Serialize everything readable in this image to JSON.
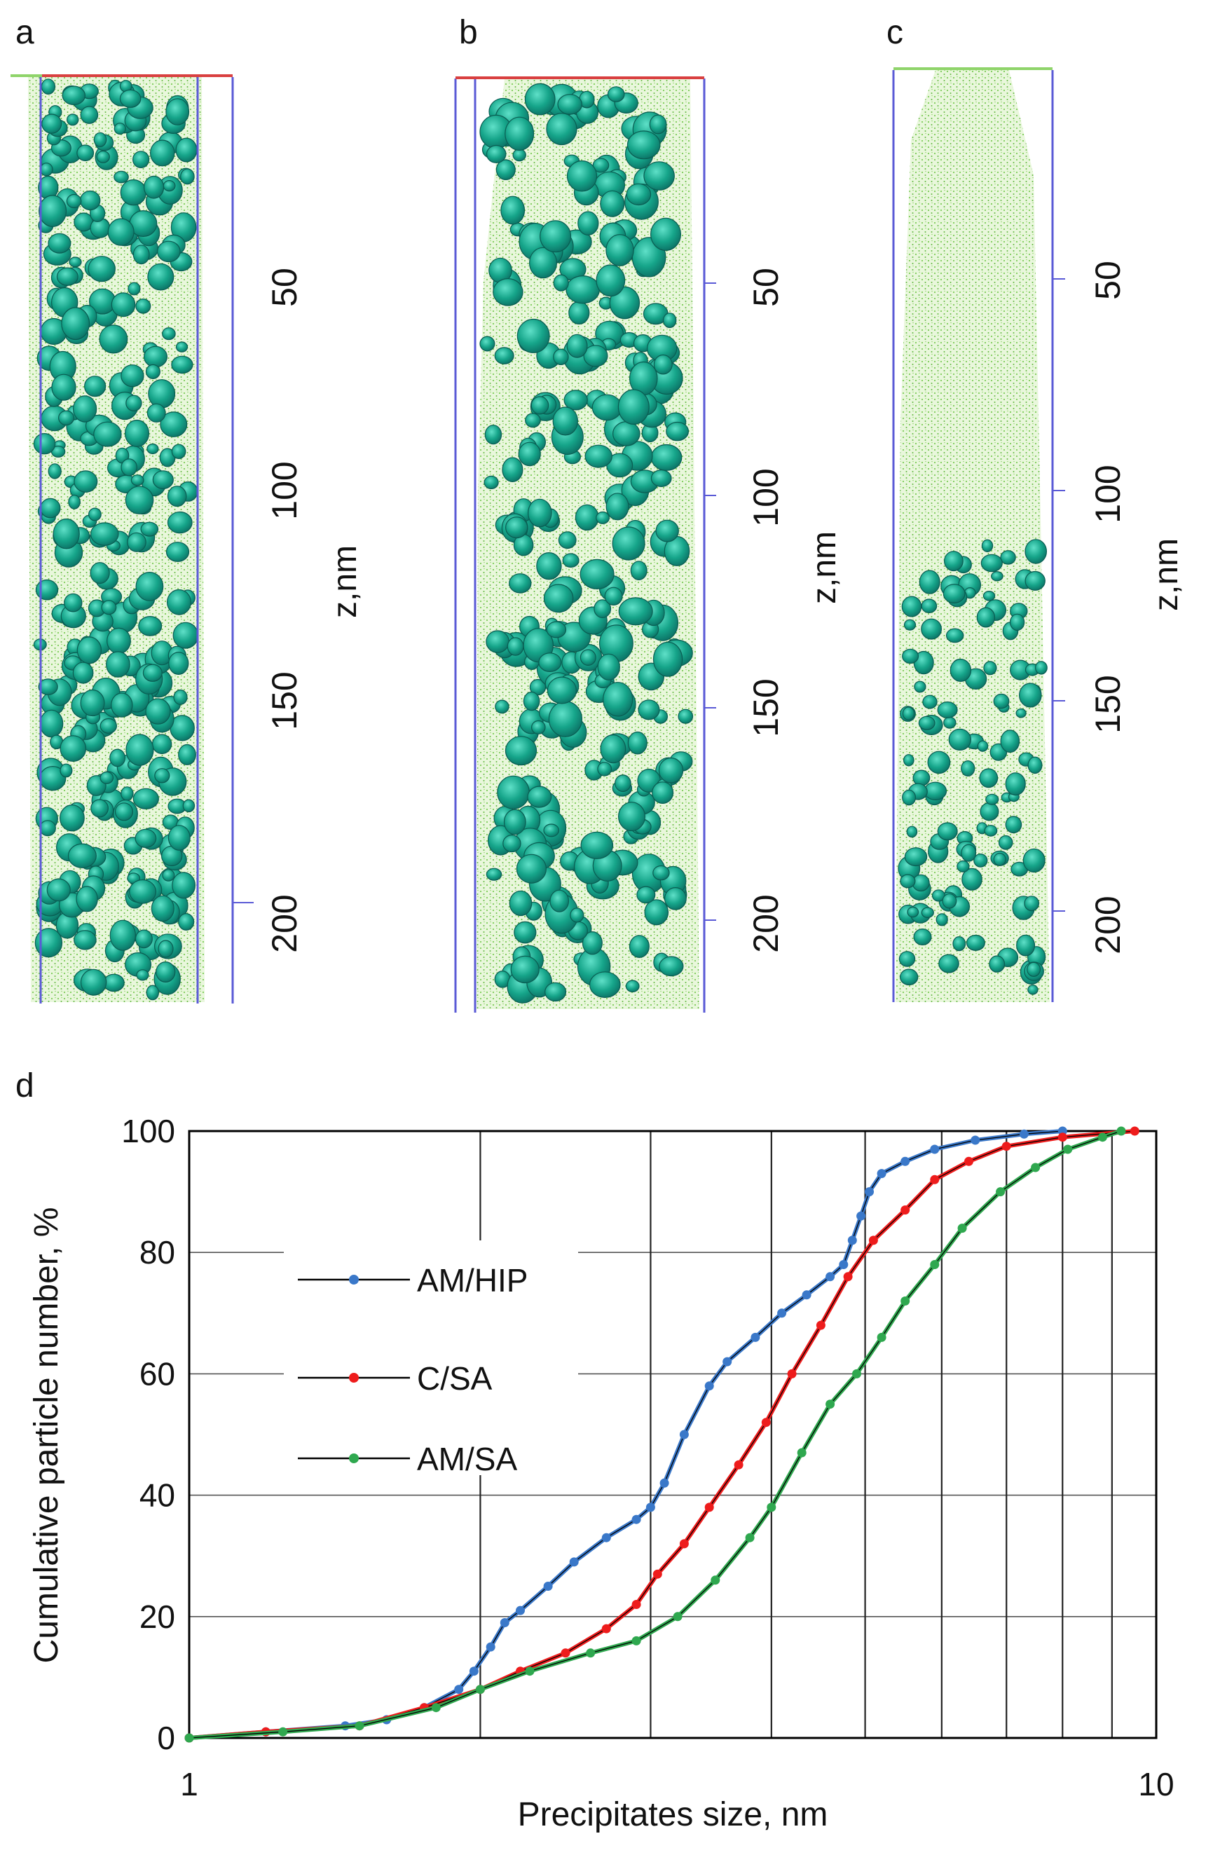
{
  "panels": [
    {
      "label": "a",
      "z_ticks": [
        "50",
        "100",
        "150",
        "200"
      ],
      "z_label": "z,nm"
    },
    {
      "label": "b",
      "z_ticks": [
        "50",
        "100",
        "150",
        "200"
      ],
      "z_label": "z,nm"
    },
    {
      "label": "c",
      "z_ticks": [
        "50",
        "100",
        "150",
        "200"
      ],
      "z_label": "z,nm"
    }
  ],
  "colors": {
    "am_hip": "#3a78c9",
    "c_sa": "#ee1c1c",
    "am_sa": "#2fa84f",
    "precipitate": "#1aa88c",
    "matrix": "#8fd46a",
    "frame": "#5a5ad6"
  },
  "chart_data": {
    "panel_label": "d",
    "type": "line",
    "xscale": "log",
    "xlim": [
      1,
      10
    ],
    "ylim": [
      0,
      100
    ],
    "xlabel": "Precipitates size, nm",
    "ylabel": "Cumulative particle number, %",
    "x_tick_labels": [
      "1",
      "10"
    ],
    "y_ticks": [
      0,
      20,
      40,
      60,
      80,
      100
    ],
    "x_gridlines": [
      2,
      3,
      4,
      5,
      6,
      7,
      8,
      9,
      10
    ],
    "legend_placement": "left",
    "series": [
      {
        "name": "AM/HIP",
        "color": "#3a78c9",
        "points": [
          [
            1.0,
            0
          ],
          [
            1.2,
            1
          ],
          [
            1.45,
            2
          ],
          [
            1.6,
            3
          ],
          [
            1.75,
            5
          ],
          [
            1.9,
            8
          ],
          [
            1.97,
            11
          ],
          [
            2.05,
            15
          ],
          [
            2.12,
            19
          ],
          [
            2.2,
            21
          ],
          [
            2.35,
            25
          ],
          [
            2.5,
            29
          ],
          [
            2.7,
            33
          ],
          [
            2.9,
            36
          ],
          [
            3.0,
            38
          ],
          [
            3.1,
            42
          ],
          [
            3.25,
            50
          ],
          [
            3.45,
            58
          ],
          [
            3.6,
            62
          ],
          [
            3.85,
            66
          ],
          [
            4.1,
            70
          ],
          [
            4.35,
            73
          ],
          [
            4.6,
            76
          ],
          [
            4.75,
            78
          ],
          [
            4.85,
            82
          ],
          [
            4.95,
            86
          ],
          [
            5.05,
            90
          ],
          [
            5.2,
            93
          ],
          [
            5.5,
            95
          ],
          [
            5.9,
            97
          ],
          [
            6.5,
            98.5
          ],
          [
            7.3,
            99.5
          ],
          [
            8.0,
            100
          ]
        ]
      },
      {
        "name": "C/SA",
        "color": "#ee1c1c",
        "points": [
          [
            1.0,
            0
          ],
          [
            1.2,
            1
          ],
          [
            1.5,
            2
          ],
          [
            1.75,
            5
          ],
          [
            2.0,
            8
          ],
          [
            2.2,
            11
          ],
          [
            2.45,
            14
          ],
          [
            2.7,
            18
          ],
          [
            2.9,
            22
          ],
          [
            3.05,
            27
          ],
          [
            3.25,
            32
          ],
          [
            3.45,
            38
          ],
          [
            3.7,
            45
          ],
          [
            3.95,
            52
          ],
          [
            4.2,
            60
          ],
          [
            4.5,
            68
          ],
          [
            4.8,
            76
          ],
          [
            5.1,
            82
          ],
          [
            5.5,
            87
          ],
          [
            5.9,
            92
          ],
          [
            6.4,
            95
          ],
          [
            7.0,
            97.5
          ],
          [
            8.0,
            99
          ],
          [
            9.5,
            100
          ]
        ]
      },
      {
        "name": "AM/SA",
        "color": "#2fa84f",
        "points": [
          [
            1.0,
            0
          ],
          [
            1.25,
            1
          ],
          [
            1.5,
            2
          ],
          [
            1.8,
            5
          ],
          [
            2.0,
            8
          ],
          [
            2.25,
            11
          ],
          [
            2.6,
            14
          ],
          [
            2.9,
            16
          ],
          [
            3.2,
            20
          ],
          [
            3.5,
            26
          ],
          [
            3.8,
            33
          ],
          [
            4.0,
            38
          ],
          [
            4.3,
            47
          ],
          [
            4.6,
            55
          ],
          [
            4.9,
            60
          ],
          [
            5.2,
            66
          ],
          [
            5.5,
            72
          ],
          [
            5.9,
            78
          ],
          [
            6.3,
            84
          ],
          [
            6.9,
            90
          ],
          [
            7.5,
            94
          ],
          [
            8.1,
            97
          ],
          [
            8.8,
            99
          ],
          [
            9.2,
            100
          ]
        ]
      }
    ]
  }
}
